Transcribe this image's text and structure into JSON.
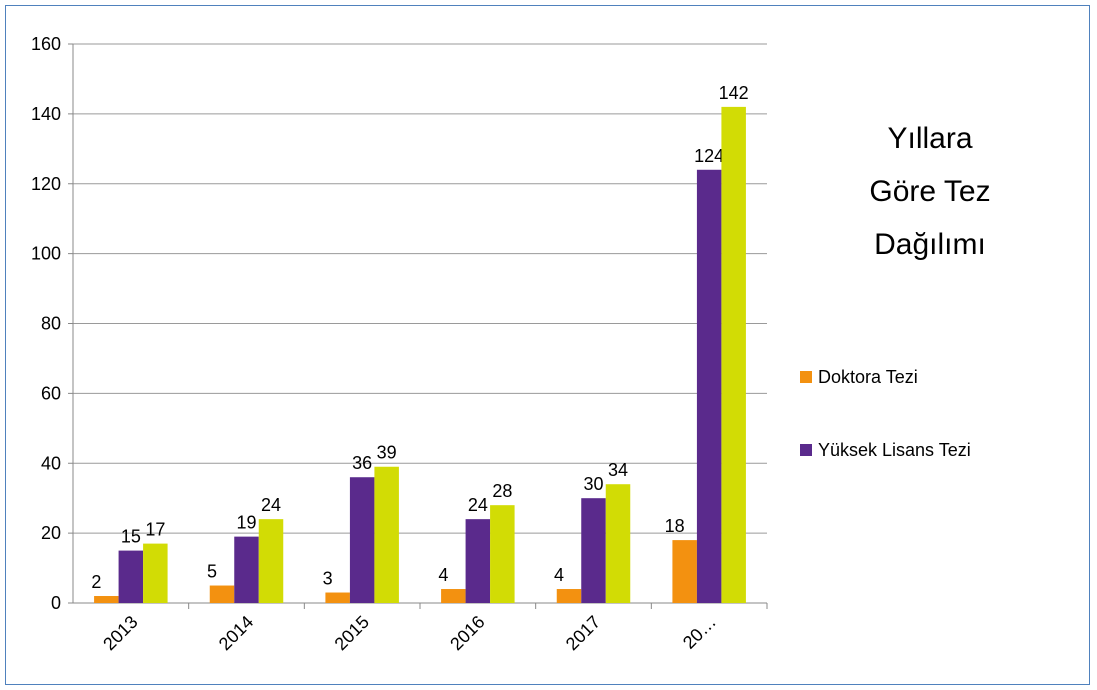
{
  "chart_data": {
    "type": "bar",
    "title": "Yıllara Göre Tez Dağılımı",
    "categories": [
      "2013",
      "2014",
      "2015",
      "2016",
      "2017",
      "20…"
    ],
    "series": [
      {
        "name": "Doktora Tezi",
        "color": "#f39110",
        "values": [
          2,
          5,
          3,
          4,
          4,
          18
        ]
      },
      {
        "name": "Yüksek Lisans Tezi",
        "color": "#5a2a8c",
        "values": [
          15,
          19,
          36,
          24,
          30,
          124
        ]
      },
      {
        "color": "#d2dc05",
        "values": [
          17,
          24,
          39,
          28,
          34,
          142
        ]
      }
    ],
    "ylim": [
      0,
      160
    ],
    "yticks": [
      0,
      20,
      40,
      60,
      80,
      100,
      120,
      140,
      160
    ],
    "grid": true,
    "legend": "right"
  }
}
